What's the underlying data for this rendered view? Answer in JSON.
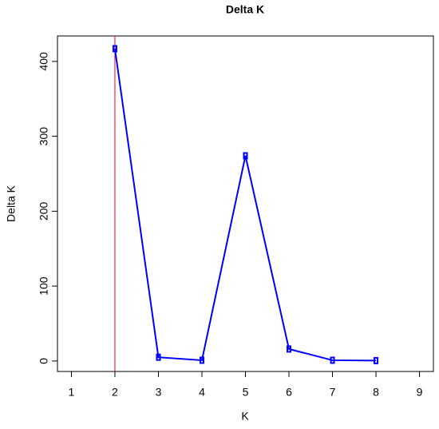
{
  "chart_data": {
    "type": "line",
    "title": "Delta K",
    "x_label": "K",
    "y_label": "Delta K",
    "x": [
      2,
      3,
      4,
      5,
      6,
      7,
      8
    ],
    "series": [
      {
        "name": "Delta K",
        "color": "#0000ff",
        "values": [
          417,
          5,
          1,
          274,
          16,
          1,
          0.5
        ]
      }
    ],
    "xlim": [
      0.68,
      9.32
    ],
    "xticks": [
      1,
      2,
      3,
      4,
      5,
      6,
      7,
      8,
      9
    ],
    "ylim": [
      -14,
      434
    ],
    "yticks": [
      0,
      100,
      200,
      300,
      400
    ],
    "reference_line": {
      "x": 2,
      "color": "#ff0000"
    }
  }
}
